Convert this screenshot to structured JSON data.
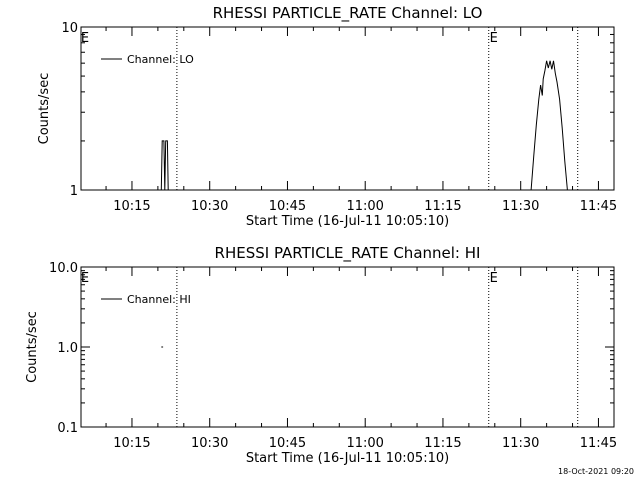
{
  "chart_data": [
    {
      "type": "line",
      "title": "RHESSI PARTICLE_RATE Channel: LO",
      "xlabel": "Start Time (16-Jul-11 10:05:10)",
      "ylabel": "Counts/sec",
      "y_scale": "log",
      "ylim": [
        1,
        10
      ],
      "y_ticks": [
        1,
        10
      ],
      "y_tick_labels": [
        "1",
        "10"
      ],
      "x_ticks": [
        "10:15",
        "10:30",
        "10:45",
        "11:00",
        "11:15",
        "11:30",
        "11:45"
      ],
      "legend": {
        "placement": "top-left",
        "entries": [
          "Channel: LO"
        ]
      },
      "event_lines": [
        "10:23:40",
        "11:23:50",
        "11:41:00"
      ],
      "event_markers": [
        "E",
        "E"
      ],
      "series": [
        {
          "name": "Channel: LO",
          "points": [
            [
              "10:20:40",
              1.0
            ],
            [
              "10:20:50",
              2.0
            ],
            [
              "10:21:10",
              2.0
            ],
            [
              "10:21:20",
              1.0
            ],
            [
              "10:21:30",
              2.0
            ],
            [
              "10:21:50",
              2.0
            ],
            [
              "10:22:00",
              1.0
            ],
            [
              "11:32:00",
              1.0
            ],
            [
              "11:32:30",
              1.6
            ],
            [
              "11:33:00",
              2.5
            ],
            [
              "11:33:30",
              3.6
            ],
            [
              "11:33:50",
              4.4
            ],
            [
              "11:34:10",
              3.8
            ],
            [
              "11:34:20",
              4.8
            ],
            [
              "11:34:40",
              5.4
            ],
            [
              "11:35:00",
              6.2
            ],
            [
              "11:35:20",
              5.6
            ],
            [
              "11:35:40",
              6.2
            ],
            [
              "11:36:00",
              5.5
            ],
            [
              "11:36:20",
              6.2
            ],
            [
              "11:36:40",
              5.2
            ],
            [
              "11:37:00",
              4.6
            ],
            [
              "11:37:30",
              3.6
            ],
            [
              "11:38:00",
              2.4
            ],
            [
              "11:38:30",
              1.5
            ],
            [
              "11:39:00",
              1.0
            ]
          ]
        }
      ]
    },
    {
      "type": "line",
      "title": "RHESSI PARTICLE_RATE Channel: HI",
      "xlabel": "Start Time (16-Jul-11 10:05:10)",
      "ylabel": "Counts/sec",
      "y_scale": "log",
      "ylim": [
        0.1,
        10
      ],
      "y_ticks": [
        0.1,
        1,
        10
      ],
      "y_tick_labels": [
        "0.1",
        "1.0",
        "10.0"
      ],
      "x_ticks": [
        "10:15",
        "10:30",
        "10:45",
        "11:00",
        "11:15",
        "11:30",
        "11:45"
      ],
      "legend": {
        "placement": "top-left",
        "entries": [
          "Channel: HI"
        ]
      },
      "event_lines": [
        "10:23:40",
        "11:23:50",
        "11:41:00"
      ],
      "event_markers": [
        "E",
        "E"
      ],
      "series": [
        {
          "name": "Channel: HI",
          "points": [
            [
              "10:20:40",
              1.0
            ],
            [
              "10:21:00",
              1.0
            ]
          ]
        }
      ]
    }
  ],
  "footer": {
    "timestamp": "18-Oct-2021 09:20"
  }
}
